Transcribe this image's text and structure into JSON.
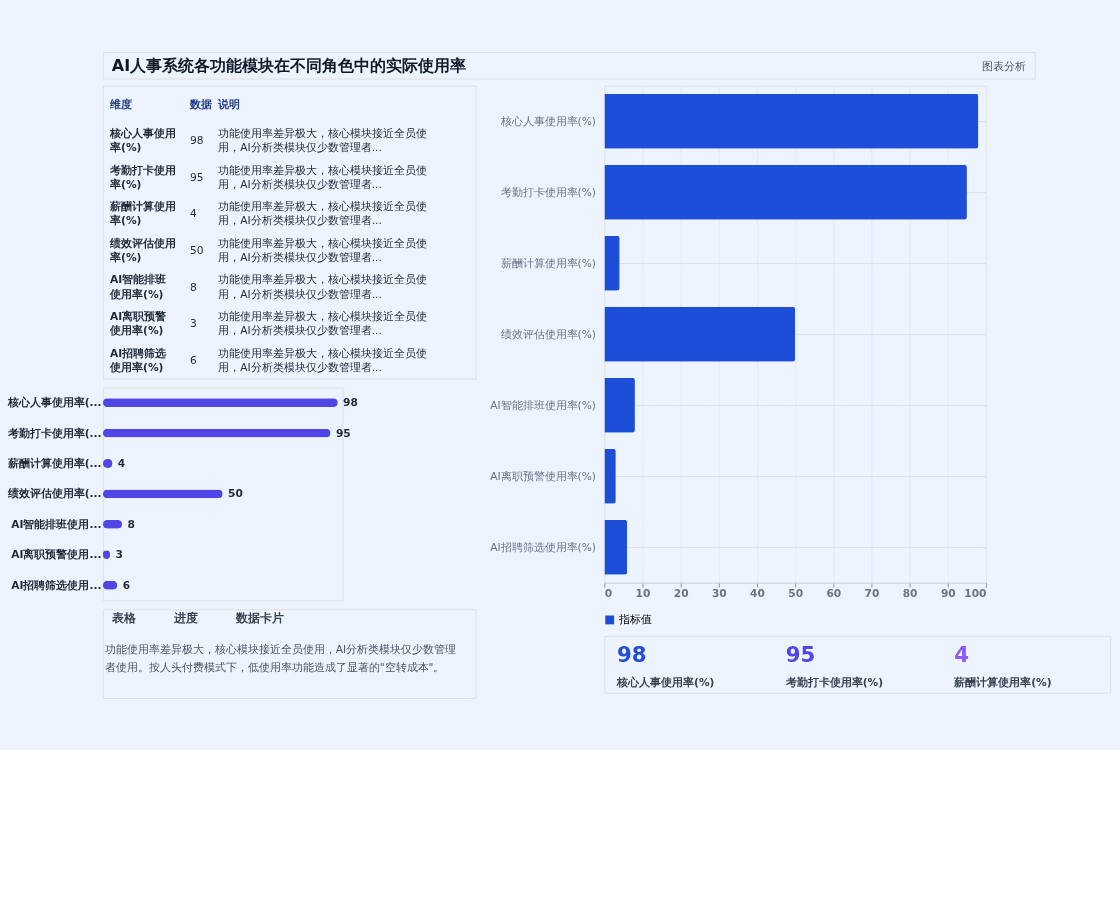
{
  "chart_data": [
    {
      "type": "bar",
      "orientation": "horizontal",
      "title": "AI人事系统各功能模块在不同角色中的实际使用率",
      "annotations": [
        "图表分析"
      ],
      "categories": [
        "核心人事使用率(%)",
        "考勤打卡使用率(%)",
        "薪酬计算使用率(%)",
        "绩效评估使用率(%)",
        "AI智能排班使用率(%)",
        "AI离职预警使用率(%)",
        "AI招聘筛选使用率(%)"
      ],
      "series": [
        {
          "name": "指标值",
          "color": "#1d4ed8",
          "values": [
            98,
            95,
            4,
            50,
            8,
            3,
            6
          ]
        }
      ],
      "xlim": [
        0,
        100
      ],
      "xticks": [
        0,
        10,
        20,
        30,
        40,
        50,
        60,
        70,
        80,
        90,
        100
      ],
      "grid": true,
      "legend": "bottom"
    },
    {
      "type": "other",
      "categories": [
        "核心人事使用率(%)",
        "考勤打卡使用率(%)",
        "薪酬计算使用率(%)",
        "绩效评估使用率(%)",
        "AI智能排班使用率(%)",
        "AI离职预警使用率(%)",
        "AI招聘筛选使用率(%)"
      ],
      "values": [
        98,
        95,
        4,
        50,
        8,
        3,
        6
      ],
      "data_labels": true,
      "annotations": [
        "维度",
        "数据",
        "说明",
        "功能使用率差异极大，核心模块接近全员使用，AI分析类模块仅少数管理者...",
        "功能使用率差异极大，核心模块接近全员使用，AI分析类模块仅少数管理者...",
        "功能使用率差异极大，核心模块接近全员使用，AI分析类模块仅少数管理者...",
        "功能使用率差异极大，核心模块接近全员使用，AI分析类模块仅少数管理者...",
        "功能使用率差异极大，核心模块接近全员使用，AI分析类模块仅少数管理者...",
        "功能使用率差异极大，核心模块接近全员使用，AI分析类模块仅少数管理者...",
        "功能使用率差异极大，核心模块接近全员使用，AI分析类模块仅少数管理者..."
      ]
    },
    {
      "type": "bar",
      "orientation": "horizontal",
      "categories": [
        "核心人事使用率(...",
        "考勤打卡使用率(...",
        "薪酬计算使用率(...",
        "绩效评估使用率(...",
        "AI智能排班使用...",
        "AI离职预警使用...",
        "AI招聘筛选使用..."
      ],
      "values": [
        98,
        95,
        4,
        50,
        8,
        3,
        6
      ],
      "color": "#4f46e5",
      "tick_labels": "y",
      "data_labels": true,
      "annotations": [
        "表格",
        "进度",
        "数据卡片",
        "功能使用率差异极大，核心模块接近全员使用，AI分析类模块仅少数管理者使用。按人头付费模式下，低使用率功能造成了显著的\"空转成本\"。"
      ]
    },
    {
      "type": "other",
      "categories": [
        "核心人事使用率(%)",
        "考勤打卡使用率(%)",
        "薪酬计算使用率(%)"
      ],
      "values": [
        98,
        95,
        4
      ],
      "data_labels": true,
      "colors": [
        "#1d4ed8",
        "#4f46e5",
        "#8b5cf6"
      ]
    }
  ]
}
